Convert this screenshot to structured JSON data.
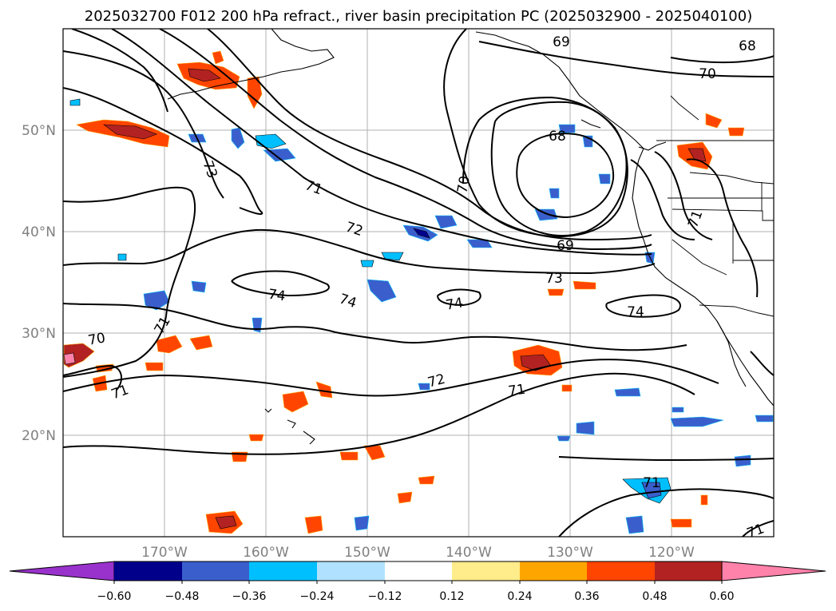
{
  "title": "2025032700 F012 200 hPa refract., river basin precipitation PC (2025032900 - 2025040100)",
  "map": {
    "lon_ticks": [
      "170°W",
      "160°W",
      "150°W",
      "140°W",
      "130°W",
      "120°W"
    ],
    "lat_ticks": [
      "50°N",
      "40°N",
      "30°N",
      "20°N"
    ],
    "contour_labels": [
      "69",
      "68",
      "70",
      "68",
      "73",
      "71",
      "72",
      "70",
      "69",
      "73",
      "74",
      "74",
      "74",
      "74",
      "70",
      "71",
      "71",
      "72",
      "71",
      "71",
      "71",
      "71"
    ]
  },
  "colorbar": {
    "ticks": [
      "−0.60",
      "−0.48",
      "−0.36",
      "−0.24",
      "−0.12",
      "0.12",
      "0.24",
      "0.36",
      "0.48",
      "0.60"
    ],
    "colors": [
      "#9932cc",
      "#00008b",
      "#3a5fcd",
      "#00bfff",
      "#b0e2ff",
      "#ffffff",
      "#ffec8b",
      "#ffa500",
      "#ff4500",
      "#b22222",
      "#ff82ab"
    ]
  }
}
